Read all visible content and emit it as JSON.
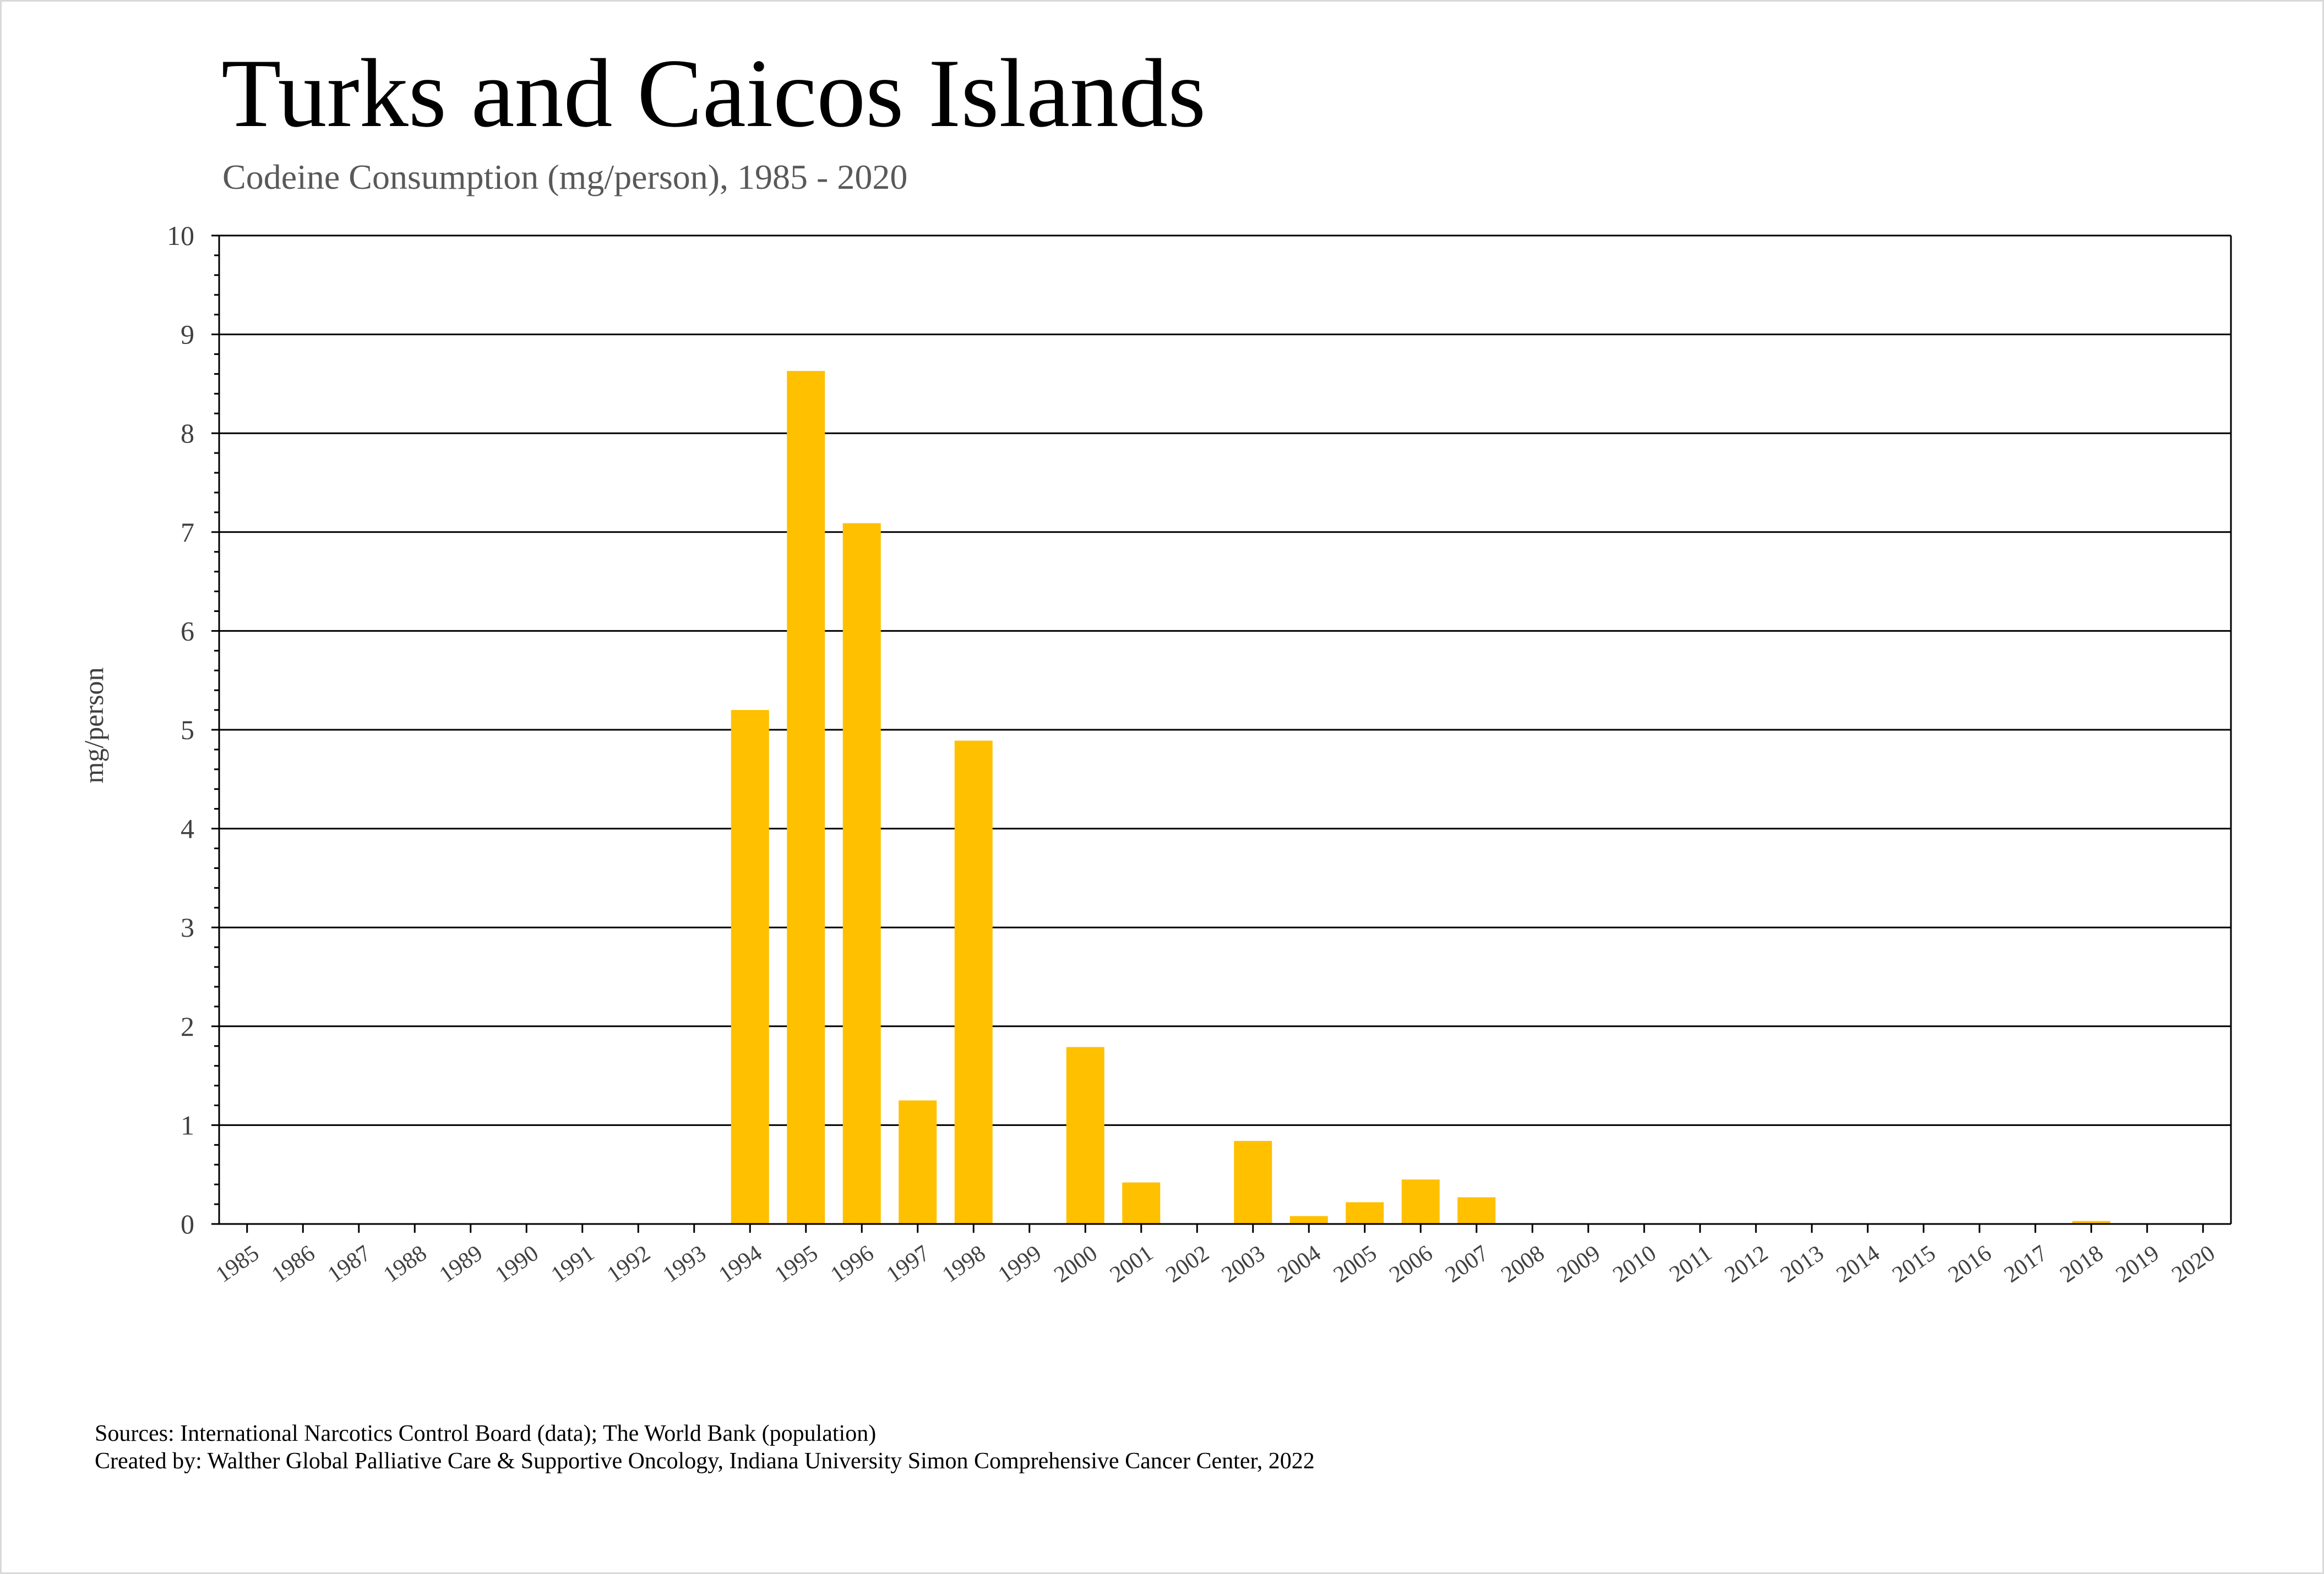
{
  "chart_data": {
    "type": "bar",
    "title": "Turks and Caicos Islands",
    "subtitle": "Codeine Consumption (mg/person), 1985 - 2020",
    "ylabel": "mg/person",
    "xlabel": "",
    "ylim": [
      0,
      10
    ],
    "yticks": [
      0,
      1,
      2,
      3,
      4,
      5,
      6,
      7,
      8,
      9,
      10
    ],
    "grid": true,
    "bar_color": "#FFC000",
    "categories": [
      "1985",
      "1986",
      "1987",
      "1988",
      "1989",
      "1990",
      "1991",
      "1992",
      "1993",
      "1994",
      "1995",
      "1996",
      "1997",
      "1998",
      "1999",
      "2000",
      "2001",
      "2002",
      "2003",
      "2004",
      "2005",
      "2006",
      "2007",
      "2008",
      "2009",
      "2010",
      "2011",
      "2012",
      "2013",
      "2014",
      "2015",
      "2016",
      "2017",
      "2018",
      "2019",
      "2020"
    ],
    "values": [
      0,
      0,
      0,
      0,
      0,
      0,
      0,
      0,
      0,
      5.2,
      8.63,
      7.09,
      1.25,
      4.89,
      0,
      1.79,
      0.42,
      0,
      0.84,
      0.08,
      0.22,
      0.45,
      0.27,
      0,
      0,
      0,
      0,
      0,
      0,
      0,
      0,
      0,
      0,
      0.03,
      0,
      0
    ]
  },
  "footer": {
    "sources": "Sources: International Narcotics Control Board (data); The World Bank (population)",
    "created_by": "Created by: Walther Global Palliative Care & Supportive Oncology, Indiana University Simon Comprehensive Cancer Center, 2022"
  }
}
